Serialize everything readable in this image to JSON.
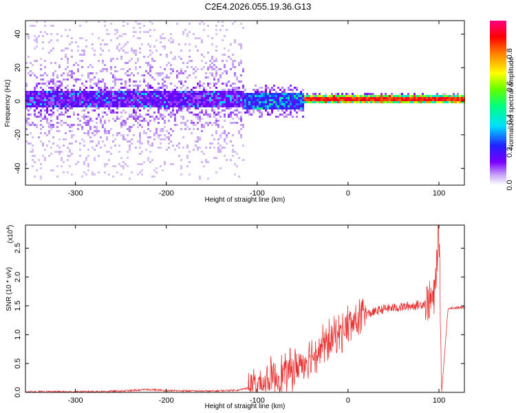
{
  "figure_title": "C2E4.2026.055.19.36.G13",
  "chart_data": [
    {
      "type": "heatmap",
      "title": "C2E4.2026.055.19.36.G13",
      "xlabel": "Height of straight line (km)",
      "ylabel": "Frequency (Hz)",
      "xlim": [
        -355,
        128
      ],
      "ylim": [
        -50,
        48
      ],
      "xticks": [
        -300,
        -200,
        -100,
        0,
        100
      ],
      "yticks": [
        -40,
        -20,
        0,
        20,
        40
      ],
      "colorbar": {
        "label": "Normalized spectral amplitude",
        "range": [
          0.0,
          1.0
        ],
        "ticks": [
          0.0,
          0.2,
          0.4,
          0.6,
          0.8
        ],
        "tick_labels": [
          "0.0",
          "0.2",
          "0.4",
          "0.6",
          "0.8"
        ],
        "colormap": "rainbow (white-violet-blue-cyan-green-yellow-red-magenta)"
      },
      "regions": [
        {
          "x_range": [
            -355,
            -115
          ],
          "band_center_hz": 2,
          "core_halfwidth_hz": 5,
          "scatter_halfwidth_hz": 48,
          "typical_amplitude": 0.15,
          "peak_amplitude": 0.4
        },
        {
          "x_range": [
            -150,
            -50
          ],
          "band_center_hz": 1,
          "core_halfwidth_hz": 5,
          "scatter_halfwidth_hz": 10,
          "typical_amplitude": 0.25,
          "peak_amplitude": 0.5
        },
        {
          "x_range": [
            -50,
            128
          ],
          "band_center_hz": 2,
          "core_halfwidth_hz": 2,
          "scatter_halfwidth_hz": 3,
          "typical_amplitude": 0.55,
          "peak_amplitude": 0.95
        }
      ]
    },
    {
      "type": "line",
      "xlabel": "Height of straight line (km)",
      "ylabel": "SNR (10 * v/v)",
      "y_scale_label": "(x10",
      "y_scale_exponent": "4",
      "xlim": [
        -355,
        128
      ],
      "ylim": [
        0,
        2.9
      ],
      "xticks": [
        -300,
        -200,
        -100,
        0,
        100
      ],
      "yticks": [
        0.0,
        0.5,
        1.0,
        1.5,
        2.0,
        2.5
      ],
      "ytick_labels": [
        "0.0",
        "0.5",
        "1.0",
        "1.5",
        "2.0",
        "2.5"
      ],
      "color": "#e83030",
      "series": [
        {
          "x": [
            -355,
            -300,
            -250,
            -220,
            -200,
            -150,
            -120,
            -100,
            -80,
            -60,
            -40,
            -20,
            0,
            20,
            40,
            60,
            80,
            95,
            100,
            103,
            110,
            128
          ],
          "y": [
            0.01,
            0.01,
            0.02,
            0.05,
            0.03,
            0.02,
            0.04,
            0.12,
            0.25,
            0.4,
            0.65,
            0.9,
            1.15,
            1.35,
            1.45,
            1.48,
            1.52,
            1.62,
            2.9,
            0.0,
            1.46,
            1.47
          ]
        }
      ]
    }
  ]
}
